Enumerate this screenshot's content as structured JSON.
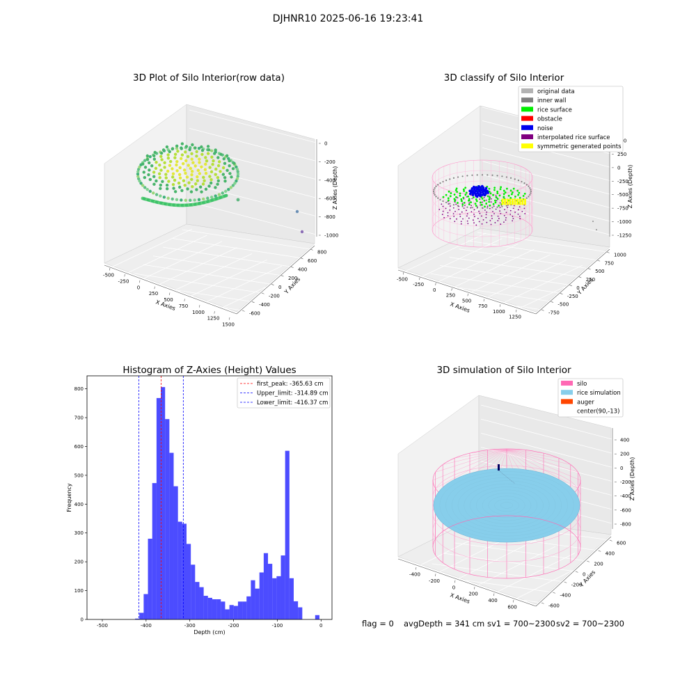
{
  "suptitle": "DJHNR10 2025-06-16 19:23:41",
  "panels": {
    "raw": {
      "title": "3D Plot of Silo Interior(row data)",
      "xlabel": "X Axies",
      "ylabel": "Y Axies",
      "zlabel": "Z Axies (Depth)",
      "xticks": [
        "-500",
        "-250",
        "0",
        "250",
        "500",
        "750",
        "1000",
        "1250",
        "1500"
      ],
      "yticks": [
        "-600",
        "-400",
        "-200",
        "0",
        "200",
        "400",
        "600",
        "800"
      ],
      "zticks": [
        "0",
        "-200",
        "-400",
        "-600",
        "-800",
        "-1000"
      ]
    },
    "classify": {
      "title": "3D classify of Silo Interior",
      "xlabel": "X Axies",
      "ylabel": "Y Axies",
      "zlabel": "Z Axies (Depth)",
      "xticks": [
        "-500",
        "-250",
        "0",
        "250",
        "500",
        "750",
        "1000",
        "1250"
      ],
      "yticks": [
        "-750",
        "-500",
        "-250",
        "0",
        "250",
        "500",
        "750",
        "1000"
      ],
      "zticks": [
        "500",
        "250",
        "0",
        "-250",
        "-500",
        "-750",
        "-1000",
        "-1250"
      ],
      "legend": [
        {
          "label": "original data",
          "color": "#b3b3b3"
        },
        {
          "label": "inner wall",
          "color": "#808080"
        },
        {
          "label": "rice surface",
          "color": "#00ee00"
        },
        {
          "label": "obstacle",
          "color": "#ff0000"
        },
        {
          "label": "noise",
          "color": "#0000ee"
        },
        {
          "label": "interpolated rice surface",
          "color": "#800080"
        },
        {
          "label": "symmetric generated points",
          "color": "#ffff00"
        }
      ]
    },
    "simulation": {
      "title": "3D simulation of Silo Interior",
      "xlabel": "X Axies",
      "ylabel": "Y Axies",
      "zlabel": "Z Axies (Depth)",
      "xticks": [
        "-400",
        "-200",
        "0",
        "200",
        "400",
        "600"
      ],
      "yticks": [
        "-600",
        "-400",
        "-200",
        "0",
        "200",
        "400",
        "600"
      ],
      "zticks": [
        "400",
        "200",
        "0",
        "-200",
        "-400",
        "-600",
        "-800"
      ],
      "legend": [
        {
          "label": "silo",
          "color": "#ff69b4"
        },
        {
          "label": "rice simulation",
          "color": "#87ceeb"
        },
        {
          "label": "auger",
          "color": "#ff4500"
        },
        {
          "label": "center(90,-13)",
          "color": "#ffffff"
        }
      ]
    }
  },
  "footer": {
    "flag": "flag = 0",
    "avg": "avgDepth = 341 cm",
    "sv1": "sv1 = 700~2300",
    "sv2": "sv2 = 700~2300"
  },
  "chart_data": {
    "type": "bar",
    "title": "Histogram of Z-Axies (Height) Values",
    "xlabel": "Depth (cm)",
    "ylabel": "Frequency",
    "xlim": [
      -535,
      25
    ],
    "ylim": [
      0,
      845
    ],
    "xticks": [
      -500,
      -400,
      -300,
      -200,
      -100,
      0
    ],
    "yticks": [
      0,
      100,
      200,
      300,
      400,
      500,
      600,
      700,
      800
    ],
    "bar_color": "#0000ff",
    "bin_edges": [
      -425.1,
      -415.3,
      -405.5,
      -395.7,
      -385.9,
      -376.1,
      -366.3,
      -356.5,
      -346.7,
      -336.9,
      -327.1,
      -317.3,
      -307.5,
      -297.7,
      -287.9,
      -278.1,
      -268.3,
      -258.5,
      -248.7,
      -238.9,
      -229.1,
      -219.3,
      -209.5,
      -199.7,
      -189.9,
      -180.1,
      -170.3,
      -160.5,
      -150.7,
      -140.9,
      -131.1,
      -121.3,
      -111.5,
      -101.7,
      -91.9,
      -82.1,
      -72.3,
      -62.5,
      -52.7,
      -42.9,
      -33.1,
      -23.3,
      -13.5,
      -3.7,
      6.1
    ],
    "values": [
      3,
      23,
      88,
      280,
      473,
      768,
      806,
      695,
      578,
      462,
      339,
      332,
      262,
      190,
      130,
      112,
      82,
      75,
      70,
      70,
      62,
      35,
      50,
      47,
      62,
      62,
      80,
      136,
      107,
      163,
      230,
      193,
      143,
      150,
      222,
      585,
      143,
      63,
      42,
      0,
      0,
      0,
      15,
      0
    ],
    "vlines": [
      {
        "label": "first_peak: -365.63 cm",
        "x": -365.63,
        "color": "#ff0000"
      },
      {
        "label": "Upper_limit: -314.89 cm",
        "x": -314.89,
        "color": "#0000ff"
      },
      {
        "label": "Lower_limit: -416.37 cm",
        "x": -416.37,
        "color": "#0000ff"
      }
    ]
  }
}
